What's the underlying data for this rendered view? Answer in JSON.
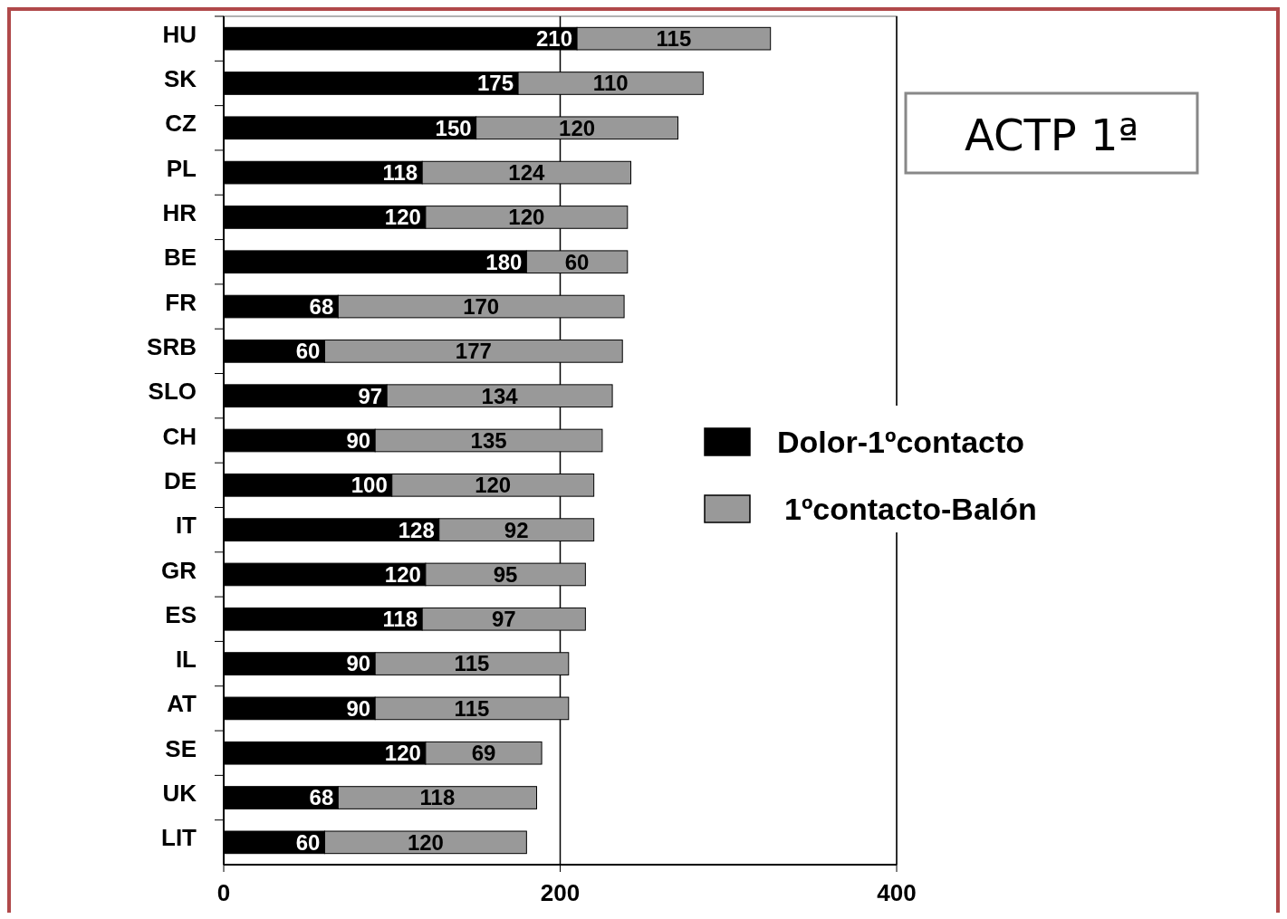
{
  "chart_data": {
    "type": "bar",
    "title": "ACTP 1ª",
    "orientation": "horizontal",
    "stacked": true,
    "data_labels": true,
    "grid": "x",
    "legend": "right",
    "categories": [
      "HU",
      "SK",
      "CZ",
      "PL",
      "HR",
      "BE",
      "FR",
      "SRB",
      "SLO",
      "CH",
      "DE",
      "IT",
      "GR",
      "ES",
      "IL",
      "AT",
      "SE",
      "UK",
      "LIT"
    ],
    "series": [
      {
        "name": "Dolor-1ºcontacto",
        "color": "#000000",
        "values": [
          210,
          175,
          150,
          118,
          120,
          180,
          68,
          60,
          97,
          90,
          100,
          128,
          120,
          118,
          90,
          90,
          120,
          68,
          60
        ]
      },
      {
        "name": "1ºcontacto-Balón",
        "color": "#999999",
        "values": [
          115,
          110,
          120,
          124,
          120,
          60,
          170,
          177,
          134,
          135,
          120,
          92,
          95,
          97,
          115,
          115,
          69,
          118,
          120
        ]
      }
    ],
    "xlim": [
      0,
      400
    ],
    "xticks": [
      0,
      200,
      400
    ]
  }
}
